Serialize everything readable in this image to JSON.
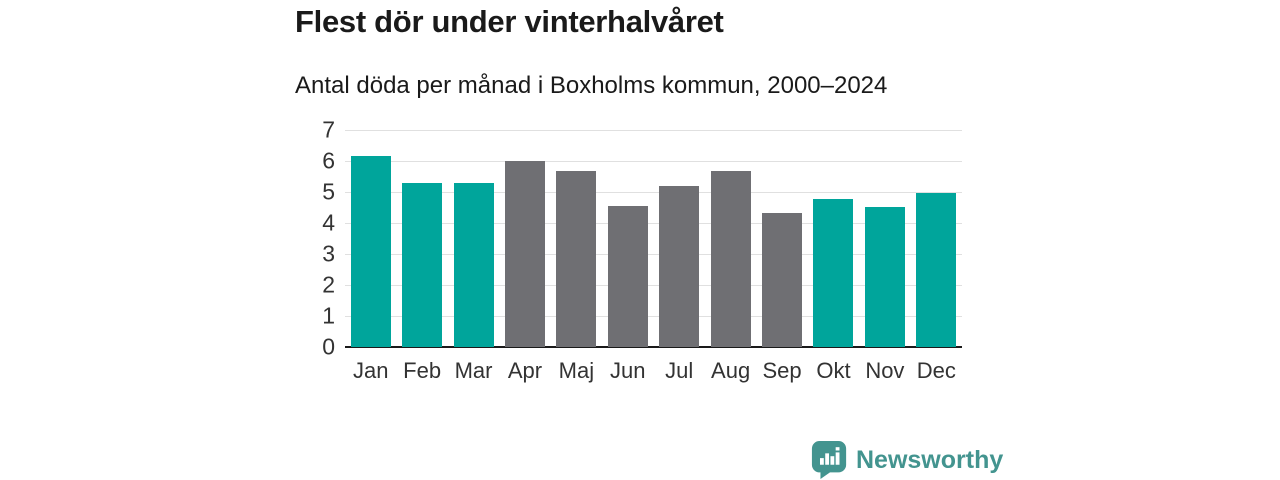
{
  "header": {
    "title": "Flest dör under vinterhalvåret",
    "subtitle": "Antal döda per månad i Boxholms kommun, 2000–2024"
  },
  "chart_data": {
    "type": "bar",
    "title": "Flest dör under vinterhalvåret",
    "subtitle": "Antal döda per månad i Boxholms kommun, 2000–2024",
    "categories": [
      "Jan",
      "Feb",
      "Mar",
      "Apr",
      "Maj",
      "Jun",
      "Jul",
      "Aug",
      "Sep",
      "Okt",
      "Nov",
      "Dec"
    ],
    "values": [
      6.16,
      5.28,
      5.28,
      6.0,
      5.68,
      4.56,
      5.2,
      5.68,
      4.32,
      4.76,
      4.52,
      4.96
    ],
    "bar_groups": [
      "winter",
      "winter",
      "winter",
      "summer",
      "summer",
      "summer",
      "summer",
      "summer",
      "summer",
      "winter",
      "winter",
      "winter"
    ],
    "group_colors": {
      "winter": "#00a59b",
      "summer": "#6f6f73"
    },
    "xlabel": "",
    "ylabel": "",
    "ylim": [
      0,
      7
    ],
    "yticks": [
      0,
      1,
      2,
      3,
      4,
      5,
      6,
      7
    ],
    "grid": true,
    "gridline_color": "#e0e0e0",
    "axis_line_color": "#1a1a1a",
    "legend": "none"
  },
  "footer": {
    "brand": "Newsworthy",
    "brand_color": "#43948f",
    "logo_icon": "speech-bubble-bar-chart"
  }
}
